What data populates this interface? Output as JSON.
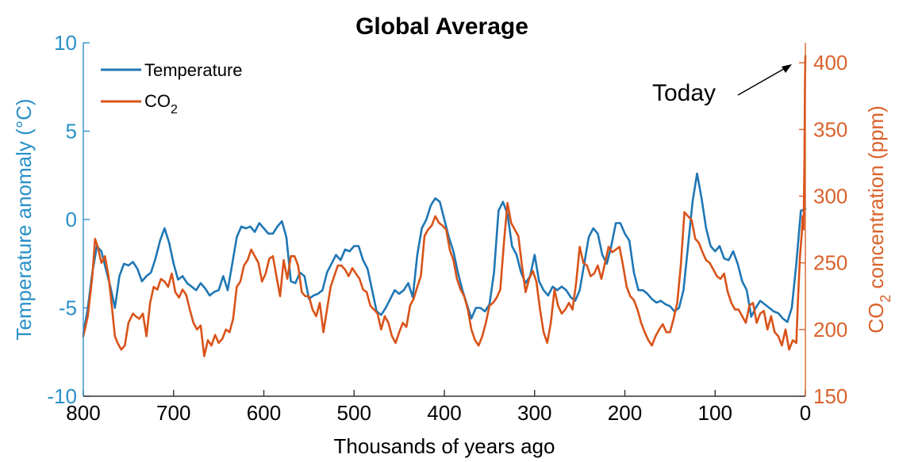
{
  "chart_data": {
    "type": "line",
    "title": "Global Average",
    "xlabel": "Thousands of years ago",
    "ylabel_left": "Temperature anomaly (°C)",
    "ylabel_right_parts": [
      "CO",
      "2",
      " concentration (ppm)"
    ],
    "xlim": [
      800,
      0
    ],
    "ylim_left": [
      -10,
      10
    ],
    "ylim_right": [
      150,
      415
    ],
    "x_ticks": [
      800,
      700,
      600,
      500,
      400,
      300,
      200,
      100,
      0
    ],
    "y_ticks_left": [
      10,
      5,
      0,
      -5,
      -10
    ],
    "y_ticks_right": [
      400,
      350,
      300,
      250,
      200,
      150
    ],
    "grid": false,
    "legend_position": "top-left",
    "annotation": {
      "text": "Today",
      "x": 0,
      "y": 405
    },
    "colors": {
      "temperature": "#1f77b4",
      "co2": "#d95319",
      "left_axis": "#2a90c8",
      "right_axis": "#d9622b"
    },
    "series": [
      {
        "name": "Temperature",
        "axis": "left",
        "x": [
          800,
          795,
          790,
          785,
          780,
          775,
          770,
          765,
          760,
          755,
          750,
          745,
          740,
          735,
          730,
          725,
          720,
          715,
          710,
          705,
          700,
          695,
          690,
          685,
          680,
          675,
          670,
          665,
          660,
          655,
          650,
          645,
          640,
          635,
          630,
          625,
          620,
          615,
          610,
          605,
          600,
          595,
          590,
          585,
          580,
          575,
          570,
          565,
          560,
          555,
          550,
          545,
          540,
          535,
          530,
          525,
          520,
          515,
          510,
          505,
          500,
          495,
          490,
          485,
          480,
          475,
          470,
          465,
          460,
          455,
          450,
          445,
          440,
          435,
          430,
          425,
          420,
          415,
          410,
          405,
          400,
          395,
          390,
          385,
          380,
          375,
          370,
          365,
          360,
          355,
          350,
          345,
          340,
          335,
          330,
          325,
          320,
          315,
          310,
          305,
          300,
          295,
          290,
          285,
          280,
          275,
          270,
          265,
          260,
          255,
          250,
          245,
          240,
          235,
          230,
          225,
          220,
          215,
          210,
          205,
          200,
          195,
          190,
          185,
          180,
          175,
          170,
          165,
          160,
          155,
          150,
          145,
          140,
          135,
          130,
          125,
          120,
          115,
          110,
          105,
          100,
          95,
          90,
          85,
          80,
          75,
          70,
          65,
          60,
          55,
          50,
          45,
          40,
          35,
          30,
          25,
          20,
          15,
          10,
          5,
          0
        ],
        "values": [
          -6.5,
          -5.0,
          -3.0,
          -1.5,
          -1.8,
          -2.8,
          -3.8,
          -5.0,
          -3.2,
          -2.5,
          -2.6,
          -2.4,
          -2.8,
          -3.5,
          -3.2,
          -3.0,
          -2.2,
          -1.2,
          -0.5,
          -1.3,
          -2.5,
          -3.4,
          -3.2,
          -3.6,
          -3.8,
          -4.0,
          -3.6,
          -3.9,
          -4.3,
          -4.1,
          -4.0,
          -3.2,
          -4.0,
          -2.5,
          -1.0,
          -0.4,
          -0.5,
          -0.4,
          -0.7,
          -0.2,
          -0.5,
          -0.8,
          -0.8,
          -0.4,
          -0.1,
          -1.0,
          -3.5,
          -3.6,
          -3.0,
          -3.2,
          -4.5,
          -4.3,
          -4.2,
          -4.0,
          -3.0,
          -2.5,
          -2.0,
          -2.3,
          -1.7,
          -1.8,
          -1.5,
          -1.5,
          -2.3,
          -2.8,
          -4.0,
          -5.2,
          -5.4,
          -5.0,
          -4.5,
          -4.0,
          -4.2,
          -4.0,
          -3.6,
          -4.4,
          -2.0,
          -0.5,
          0.0,
          0.8,
          1.2,
          1.0,
          0.0,
          -1.0,
          -1.8,
          -3.0,
          -4.0,
          -4.8,
          -5.6,
          -5.0,
          -5.0,
          -5.2,
          -4.8,
          -3.0,
          0.5,
          1.0,
          0.3,
          -1.5,
          -2.0,
          -3.0,
          -3.6,
          -3.2,
          -2.0,
          -3.5,
          -4.0,
          -4.3,
          -3.8,
          -4.0,
          -3.8,
          -4.0,
          -4.4,
          -4.6,
          -4.0,
          -2.5,
          -1.0,
          -0.5,
          -0.8,
          -2.0,
          -2.5,
          -1.5,
          -0.2,
          -0.2,
          -0.8,
          -1.2,
          -3.0,
          -4.0,
          -4.0,
          -4.2,
          -4.5,
          -4.7,
          -4.6,
          -4.8,
          -4.9,
          -5.2,
          -5.0,
          -4.0,
          -1.5,
          1.0,
          2.6,
          1.2,
          -0.5,
          -1.5,
          -1.8,
          -1.5,
          -2.2,
          -2.3,
          -1.8,
          -2.5,
          -3.5,
          -4.0,
          -5.5,
          -5.0,
          -4.6,
          -4.8,
          -5.0,
          -5.2,
          -5.3,
          -5.6,
          -5.8,
          -5.0,
          -2.5,
          0.5,
          0.6
        ]
      },
      {
        "name": "CO",
        "name_sub": "2",
        "axis": "right",
        "x": [
          800,
          795,
          790,
          787,
          784,
          780,
          776,
          772,
          768,
          765,
          762,
          758,
          754,
          750,
          745,
          742,
          738,
          734,
          730,
          726,
          722,
          718,
          714,
          710,
          706,
          702,
          698,
          694,
          690,
          686,
          682,
          678,
          674,
          670,
          666,
          662,
          658,
          654,
          650,
          646,
          642,
          638,
          634,
          630,
          626,
          622,
          618,
          614,
          610,
          606,
          602,
          598,
          594,
          590,
          586,
          582,
          578,
          574,
          570,
          566,
          562,
          558,
          554,
          550,
          546,
          542,
          538,
          534,
          530,
          526,
          522,
          518,
          514,
          510,
          506,
          502,
          498,
          494,
          490,
          486,
          482,
          478,
          474,
          470,
          466,
          462,
          458,
          454,
          450,
          446,
          442,
          438,
          434,
          430,
          426,
          422,
          418,
          414,
          410,
          406,
          402,
          398,
          394,
          390,
          386,
          382,
          378,
          374,
          370,
          366,
          362,
          358,
          354,
          350,
          346,
          342,
          338,
          334,
          330,
          326,
          322,
          318,
          314,
          310,
          306,
          302,
          298,
          294,
          290,
          286,
          282,
          278,
          274,
          270,
          266,
          262,
          258,
          254,
          250,
          246,
          242,
          238,
          234,
          230,
          226,
          222,
          218,
          214,
          210,
          206,
          202,
          198,
          194,
          190,
          186,
          182,
          178,
          174,
          170,
          166,
          162,
          158,
          154,
          150,
          146,
          142,
          138,
          134,
          130,
          126,
          122,
          118,
          114,
          110,
          106,
          102,
          98,
          94,
          90,
          86,
          82,
          78,
          74,
          70,
          66,
          62,
          58,
          54,
          50,
          46,
          42,
          38,
          34,
          30,
          26,
          22,
          18,
          14,
          10,
          8,
          6,
          4,
          3,
          2,
          1.5,
          1,
          0.5,
          0
        ],
        "values": [
          195,
          210,
          240,
          268,
          262,
          250,
          255,
          240,
          215,
          195,
          190,
          185,
          188,
          205,
          212,
          210,
          208,
          212,
          195,
          220,
          232,
          230,
          238,
          236,
          232,
          242,
          228,
          224,
          230,
          226,
          215,
          205,
          200,
          203,
          180,
          192,
          188,
          196,
          190,
          193,
          200,
          198,
          208,
          232,
          236,
          248,
          252,
          260,
          255,
          250,
          236,
          242,
          253,
          255,
          240,
          225,
          252,
          238,
          255,
          255,
          248,
          228,
          225,
          225,
          215,
          210,
          220,
          198,
          215,
          232,
          240,
          248,
          248,
          245,
          240,
          246,
          242,
          238,
          230,
          228,
          218,
          215,
          212,
          200,
          210,
          205,
          195,
          190,
          198,
          205,
          202,
          218,
          223,
          232,
          240,
          270,
          275,
          278,
          285,
          280,
          278,
          275,
          260,
          252,
          238,
          230,
          225,
          215,
          200,
          192,
          188,
          195,
          205,
          218,
          220,
          224,
          230,
          265,
          295,
          280,
          275,
          270,
          248,
          228,
          238,
          244,
          236,
          215,
          198,
          190,
          205,
          230,
          218,
          212,
          215,
          220,
          215,
          235,
          262,
          250,
          248,
          240,
          242,
          248,
          238,
          250,
          262,
          258,
          260,
          262,
          248,
          232,
          225,
          222,
          215,
          205,
          198,
          192,
          188,
          195,
          200,
          204,
          198,
          198,
          208,
          220,
          248,
          288,
          285,
          282,
          268,
          265,
          258,
          252,
          250,
          245,
          240,
          238,
          242,
          228,
          220,
          215,
          215,
          210,
          205,
          218,
          220,
          205,
          212,
          214,
          200,
          210,
          198,
          195,
          188,
          200,
          185,
          192,
          190,
          225,
          255,
          272,
          285,
          275,
          300,
          330,
          380,
          405
        ]
      }
    ]
  }
}
